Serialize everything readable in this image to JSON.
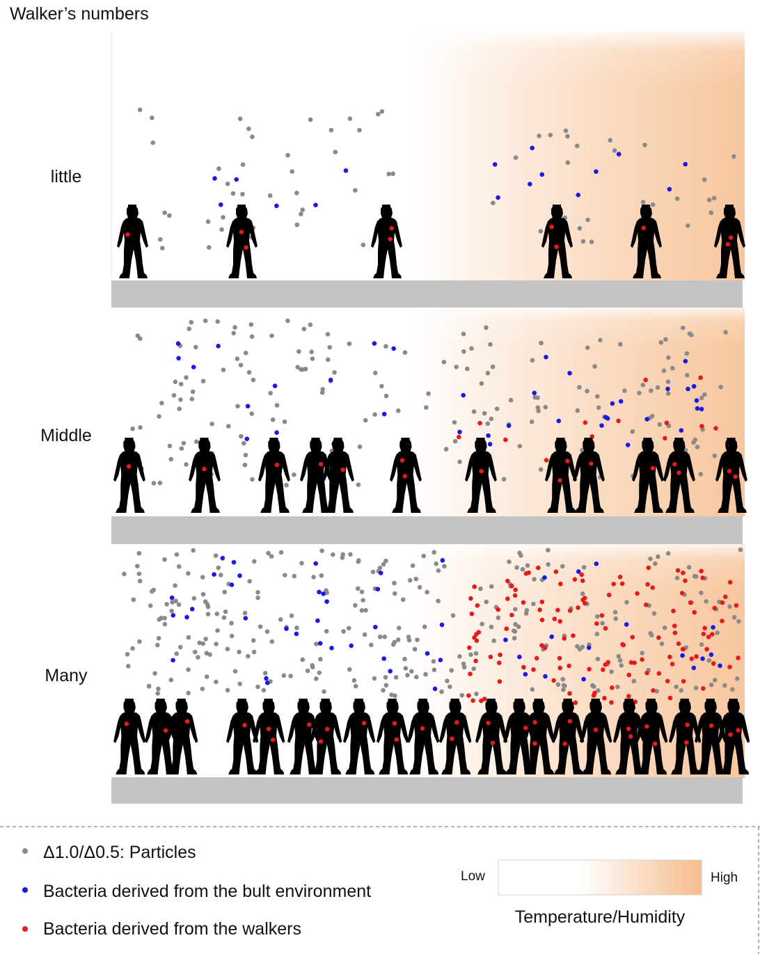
{
  "title": "Walker’s numbers",
  "panels": [
    {
      "label": "little",
      "walkers": 6,
      "particles": "sparse",
      "bacteria_environment": "few",
      "bacteria_walkers": "on walkers only"
    },
    {
      "label": "Middle",
      "walkers": 12,
      "particles": "moderate",
      "bacteria_environment": "moderate",
      "bacteria_walkers": "some airborne in warm zone"
    },
    {
      "label": "Many",
      "walkers": 28,
      "particles": "dense",
      "bacteria_environment": "many",
      "bacteria_walkers": "dense airborne in warm zone"
    }
  ],
  "legend": {
    "particles": {
      "label": "Δ1.0/Δ0.5: Particles",
      "color": "#8a8a8a"
    },
    "env_bacteria": {
      "label": "Bacteria derived from the bult environment",
      "color": "#1a1ae6"
    },
    "walker_bacteria": {
      "label": "Bacteria derived from the walkers",
      "color": "#e61a1a"
    }
  },
  "gradient": {
    "low_label": "Low",
    "high_label": "High",
    "caption": "Temperature/Humidity",
    "low_color": "#ffffff",
    "high_color": "#f6bc8c"
  },
  "colors": {
    "floor": "#c4c4c4",
    "walker": "#000000",
    "warm_zone": "#f6bc8c",
    "divider": "#9a9a9a"
  }
}
